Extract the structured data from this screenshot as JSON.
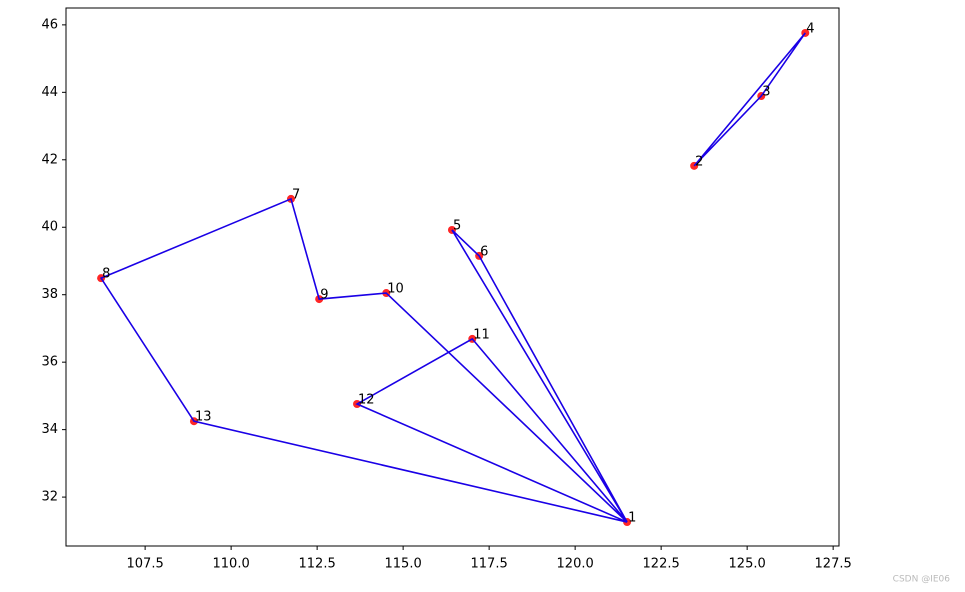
{
  "chart_data": {
    "type": "scatter-route",
    "points": {
      "name": "points",
      "color": "#ff0000",
      "x": [
        121.51,
        123.46,
        125.41,
        126.69,
        116.42,
        117.21,
        111.74,
        106.22,
        112.56,
        114.51,
        117.01,
        113.66,
        108.92
      ],
      "y": [
        31.26,
        41.82,
        43.89,
        45.76,
        39.92,
        39.15,
        40.84,
        38.49,
        37.87,
        38.05,
        36.69,
        34.76,
        34.25
      ],
      "labels": [
        "1",
        "2",
        "3",
        "4",
        "5",
        "6",
        "7",
        "8",
        "9",
        "10",
        "11",
        "12",
        "13"
      ]
    },
    "route": {
      "name": "route",
      "color": "#1a00e6",
      "x": [
        123.46,
        125.41,
        126.69,
        123.46,
        null,
        121.51,
        117.21,
        116.42,
        121.51,
        117.01,
        113.66,
        121.51,
        114.51,
        112.56,
        111.74,
        106.22,
        108.92,
        121.51
      ],
      "y": [
        41.82,
        43.89,
        45.76,
        41.82,
        null,
        31.26,
        39.15,
        39.92,
        31.26,
        36.69,
        34.76,
        31.26,
        38.05,
        37.87,
        40.84,
        38.49,
        34.25,
        31.26
      ]
    },
    "xlim": [
      105.2,
      127.67
    ],
    "ylim": [
      30.55,
      46.5
    ],
    "xticks": [
      {
        "value": 107.5,
        "label": "107.5"
      },
      {
        "value": 110,
        "label": "110.0"
      },
      {
        "value": 112.5,
        "label": "112.5"
      },
      {
        "value": 115,
        "label": "115.0"
      },
      {
        "value": 117.5,
        "label": "117.5"
      },
      {
        "value": 120,
        "label": "120.0"
      },
      {
        "value": 122.5,
        "label": "122.5"
      },
      {
        "value": 125,
        "label": "125.0"
      },
      {
        "value": 127.5,
        "label": "127.5"
      }
    ],
    "yticks": [
      32,
      34,
      36,
      38,
      40,
      42,
      44,
      46
    ],
    "watermark": "CSDN @IE06"
  }
}
